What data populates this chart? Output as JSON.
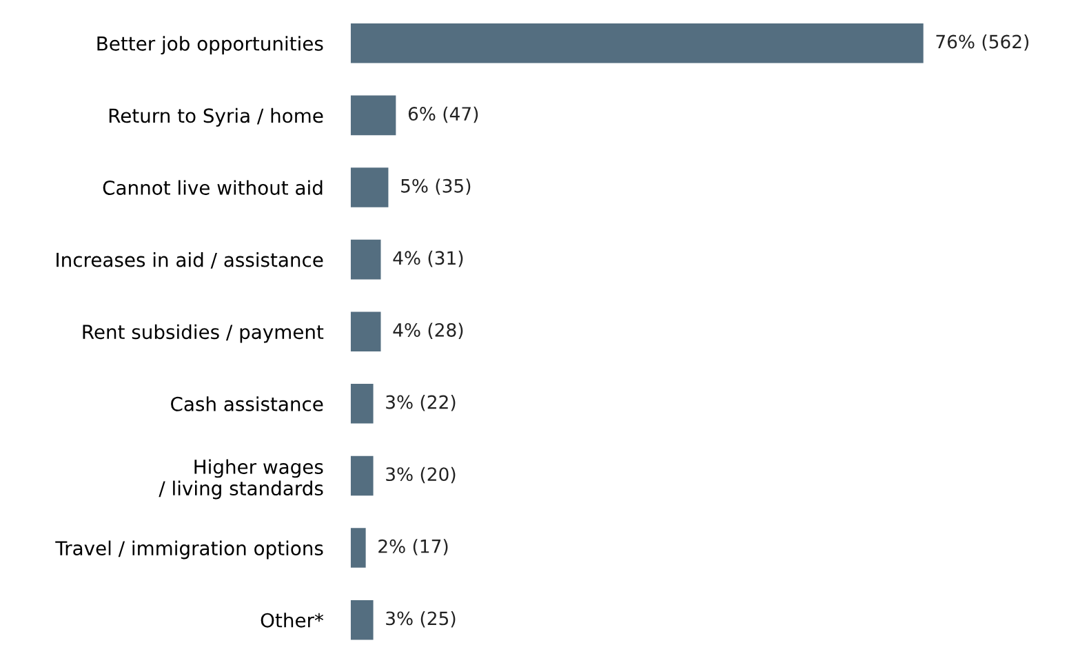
{
  "chart_data": {
    "type": "bar",
    "orientation": "horizontal",
    "categories": [
      "Better job opportunities",
      "Return to Syria / home",
      "Cannot live without aid",
      "Increases in aid / assistance",
      "Rent subsidies / payment",
      "Cash assistance",
      "Higher wages\n/ living standards",
      "Travel / immigration options",
      "Other*"
    ],
    "values": [
      76,
      6,
      5,
      4,
      4,
      3,
      3,
      2,
      3
    ],
    "value_labels": [
      "76% (562)",
      "6% (47)",
      "5% (35)",
      "4% (31)",
      "4% (28)",
      "3% (22)",
      "3% (20)",
      "2% (17)",
      "3% (25)"
    ],
    "color": "#546e80"
  }
}
